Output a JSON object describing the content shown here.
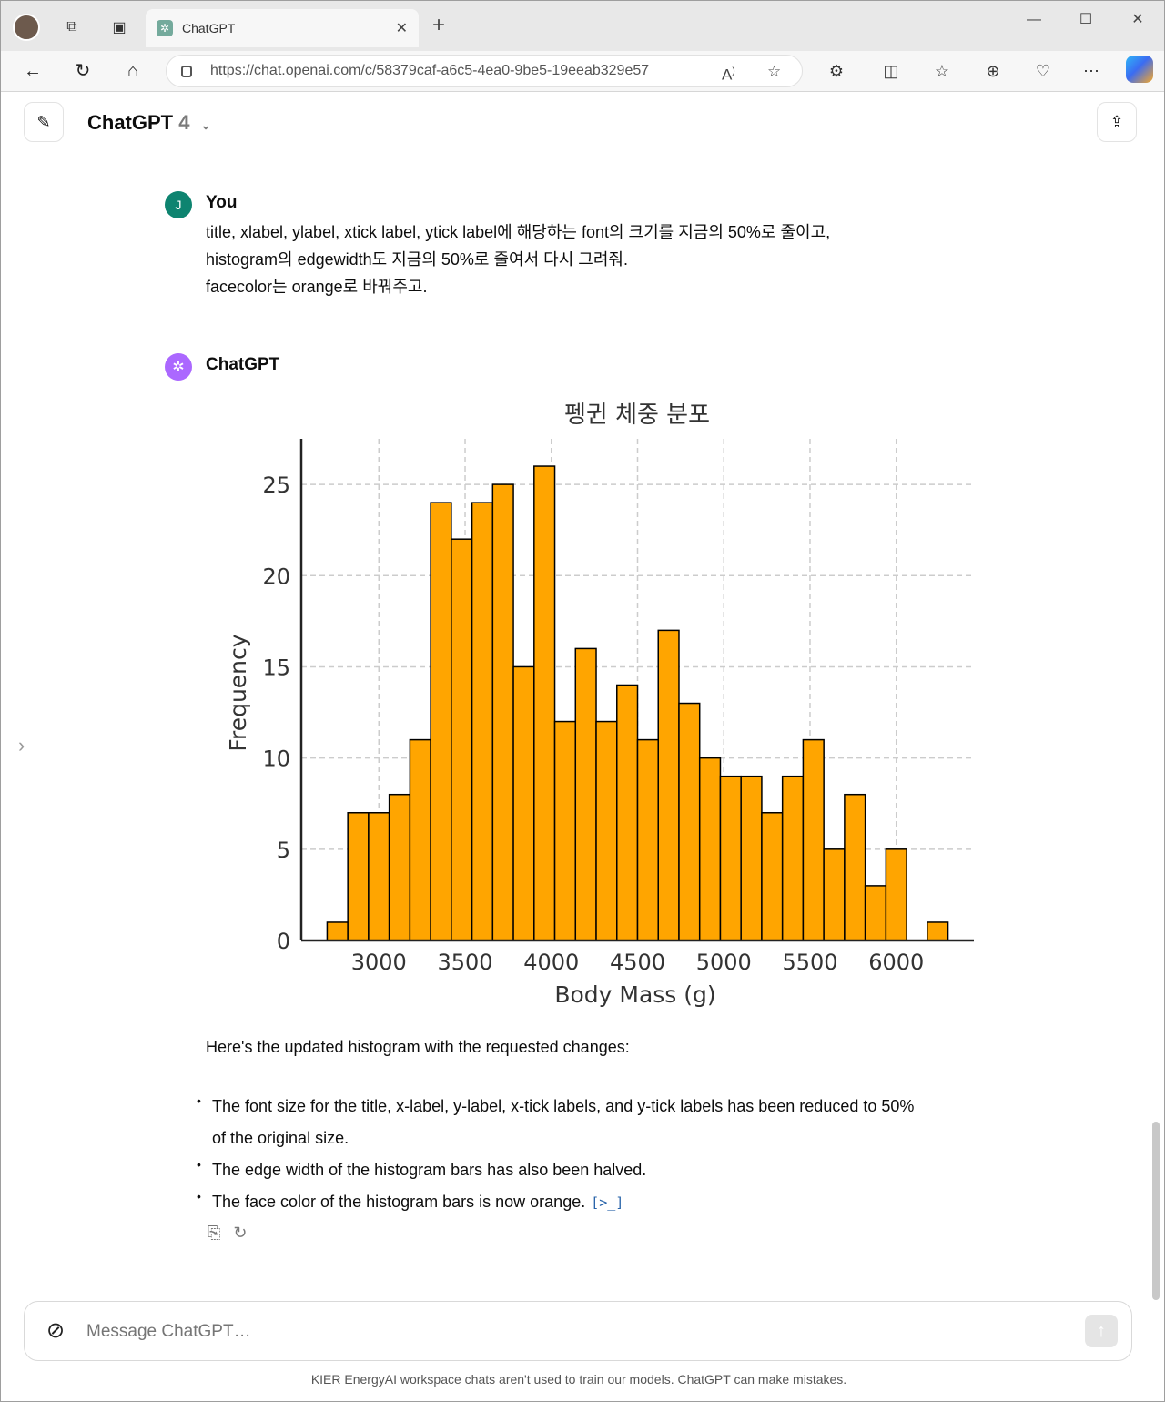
{
  "browser": {
    "tab_title": "ChatGPT",
    "url": "https://chat.openai.com/c/58379caf-a6c5-4ea0-9be5-19eeab329e57"
  },
  "header": {
    "model_name": "ChatGPT",
    "model_version": "4"
  },
  "conversation": {
    "user": {
      "avatar_letter": "J",
      "name": "You",
      "lines": [
        "title, xlabel, ylabel, xtick label, ytick label에 해당하는 font의 크기를 지금의 50%로 줄이고,",
        "histogram의 edgewidth도 지금의 50%로 줄여서 다시 그려줘.",
        "facecolor는 orange로 바꿔주고."
      ]
    },
    "assistant": {
      "name": "ChatGPT",
      "intro": "Here's the updated histogram with the requested changes:",
      "bullets": [
        "The font size for the title, x-label, y-label, x-tick labels, and y-tick labels has been reduced to 50%",
        "of the original size.",
        "The edge width of the histogram bars has also been halved.",
        "The face color of the histogram bars is now orange."
      ],
      "code_link": "[>_]"
    }
  },
  "chart_data": {
    "type": "bar",
    "title": "펭귄 체중 분포",
    "xlabel": "Body Mass (g)",
    "ylabel": "Frequency",
    "bar_color": "#ffa500",
    "edge_color": "#000000",
    "grid": true,
    "xlim": [
      2550,
      6450
    ],
    "ylim": [
      0,
      27.5
    ],
    "xticks": [
      3000,
      3500,
      4000,
      4500,
      5000,
      5500,
      6000
    ],
    "yticks": [
      0,
      5,
      10,
      15,
      20,
      25
    ],
    "bins": [
      {
        "x0": 2700,
        "x1": 2820,
        "count": 1
      },
      {
        "x0": 2820,
        "x1": 2940,
        "count": 7
      },
      {
        "x0": 2940,
        "x1": 3060,
        "count": 7
      },
      {
        "x0": 3060,
        "x1": 3180,
        "count": 8
      },
      {
        "x0": 3180,
        "x1": 3300,
        "count": 11
      },
      {
        "x0": 3300,
        "x1": 3420,
        "count": 24
      },
      {
        "x0": 3420,
        "x1": 3540,
        "count": 22
      },
      {
        "x0": 3540,
        "x1": 3660,
        "count": 24
      },
      {
        "x0": 3660,
        "x1": 3780,
        "count": 25
      },
      {
        "x0": 3780,
        "x1": 3900,
        "count": 15
      },
      {
        "x0": 3900,
        "x1": 4020,
        "count": 26
      },
      {
        "x0": 4020,
        "x1": 4140,
        "count": 12
      },
      {
        "x0": 4140,
        "x1": 4260,
        "count": 16
      },
      {
        "x0": 4260,
        "x1": 4380,
        "count": 12
      },
      {
        "x0": 4380,
        "x1": 4500,
        "count": 14
      },
      {
        "x0": 4500,
        "x1": 4620,
        "count": 11
      },
      {
        "x0": 4620,
        "x1": 4740,
        "count": 17
      },
      {
        "x0": 4740,
        "x1": 4860,
        "count": 13
      },
      {
        "x0": 4860,
        "x1": 4980,
        "count": 10
      },
      {
        "x0": 4980,
        "x1": 5100,
        "count": 9
      },
      {
        "x0": 5100,
        "x1": 5220,
        "count": 9
      },
      {
        "x0": 5220,
        "x1": 5340,
        "count": 7
      },
      {
        "x0": 5340,
        "x1": 5460,
        "count": 9
      },
      {
        "x0": 5460,
        "x1": 5580,
        "count": 11
      },
      {
        "x0": 5580,
        "x1": 5700,
        "count": 5
      },
      {
        "x0": 5700,
        "x1": 5820,
        "count": 8
      },
      {
        "x0": 5820,
        "x1": 5940,
        "count": 3
      },
      {
        "x0": 5940,
        "x1": 6060,
        "count": 5
      },
      {
        "x0": 6060,
        "x1": 6180,
        "count": 0
      },
      {
        "x0": 6180,
        "x1": 6300,
        "count": 1
      }
    ]
  },
  "composer": {
    "placeholder": "Message ChatGPT…"
  },
  "footer": {
    "disclaimer": "KIER EnergyAI workspace chats aren't used to train our models. ChatGPT can make mistakes."
  }
}
